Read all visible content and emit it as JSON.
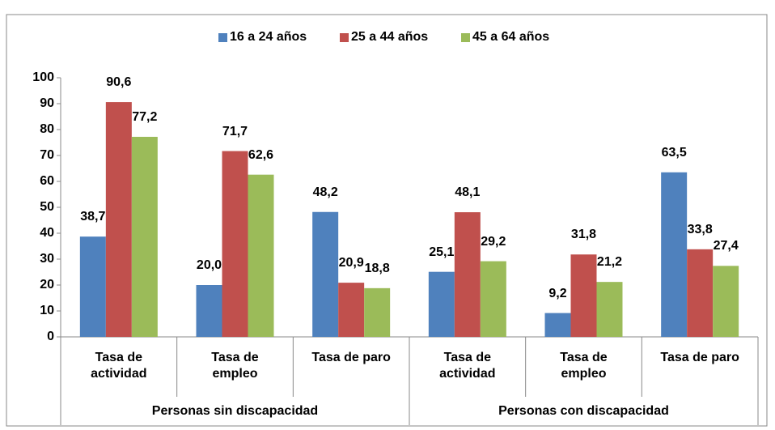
{
  "chart_data": {
    "type": "bar",
    "categories": [
      "Tasa de actividad",
      "Tasa de empleo",
      "Tasa de paro",
      "Tasa de actividad",
      "Tasa de empleo",
      "Tasa de paro"
    ],
    "x_groups": [
      "Personas sin discapacidad",
      "Personas con discapacidad"
    ],
    "series": [
      {
        "name": "16 a 24 años",
        "color": "#4f81bd",
        "values": [
          38.7,
          20.0,
          48.2,
          25.1,
          9.2,
          63.5
        ],
        "value_labels": [
          "38,7",
          "20,0",
          "48,2",
          "25,1",
          "9,2",
          "63,5"
        ]
      },
      {
        "name": "25 a 44 años",
        "color": "#c0504d",
        "values": [
          90.6,
          71.7,
          20.9,
          48.1,
          31.8,
          33.8
        ],
        "value_labels": [
          "90,6",
          "71,7",
          "20,9",
          "48,1",
          "31,8",
          "33,8"
        ]
      },
      {
        "name": "45 a 64 años",
        "color": "#9bbb59",
        "values": [
          77.2,
          62.6,
          18.8,
          29.2,
          21.2,
          27.4
        ],
        "value_labels": [
          "77,2",
          "62,6",
          "18,8",
          "29,2",
          "21,2",
          "27,4"
        ]
      }
    ],
    "ylim": [
      0,
      100
    ],
    "yticks": [
      0,
      10,
      20,
      30,
      40,
      50,
      60,
      70,
      80,
      90,
      100
    ],
    "grid": false,
    "legend": "top"
  }
}
